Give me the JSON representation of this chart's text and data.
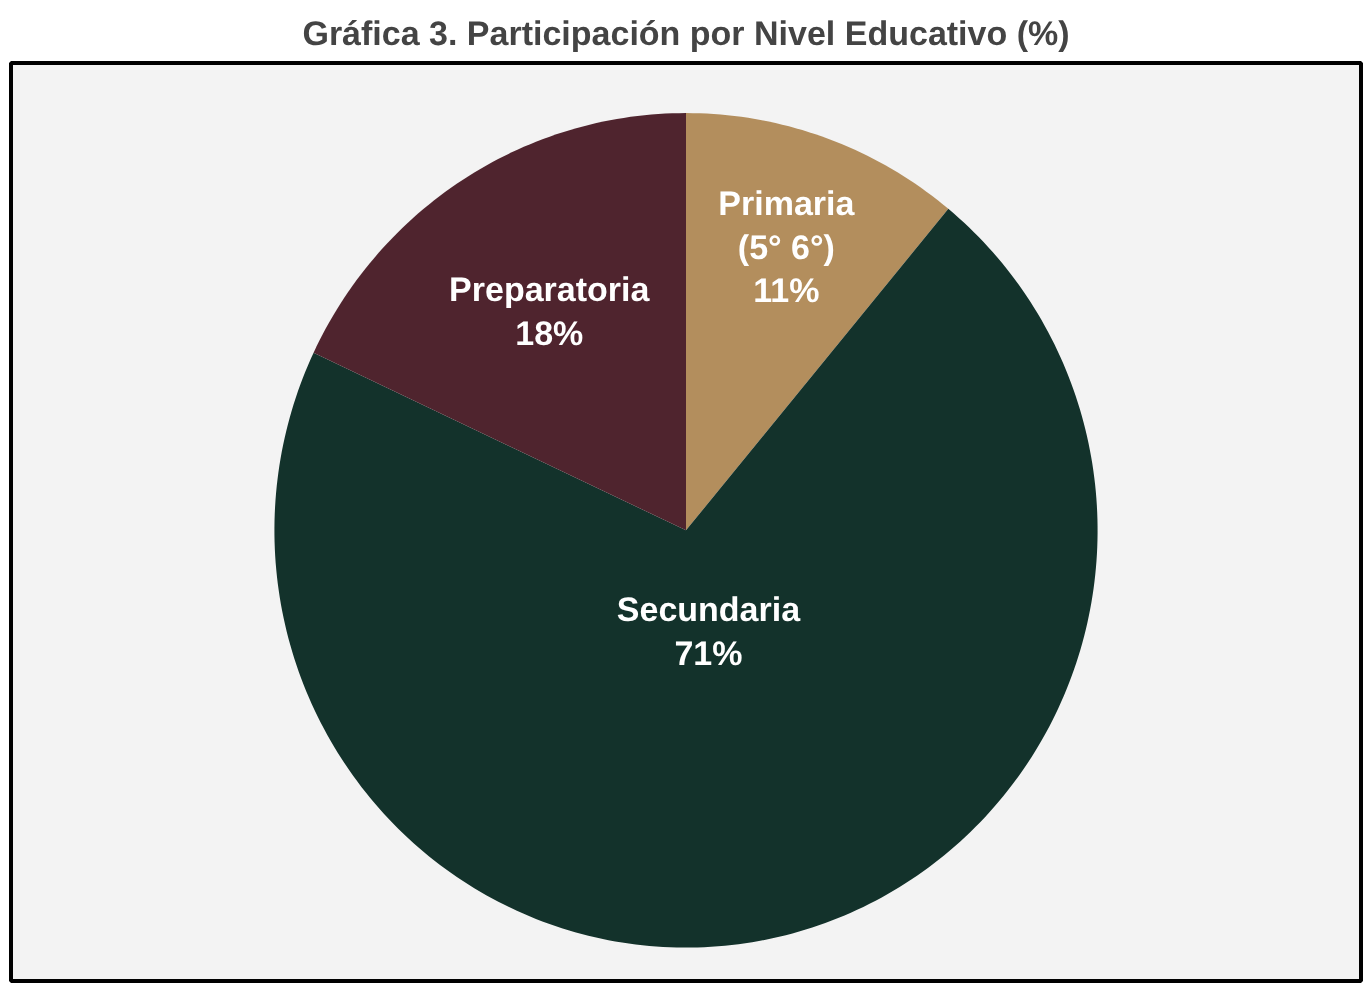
{
  "chart_data": {
    "type": "pie",
    "title": "Gráfica 3. Participación por Nivel Educativo (%)",
    "categories": [
      "Primaria (5° 6°)",
      "Secundaria",
      "Preparatoria"
    ],
    "values": [
      11,
      71,
      18
    ],
    "colors": [
      "#b38e5d",
      "#13322b",
      "#4f242e"
    ],
    "value_labels": [
      "11%",
      "71%",
      "18%"
    ]
  }
}
